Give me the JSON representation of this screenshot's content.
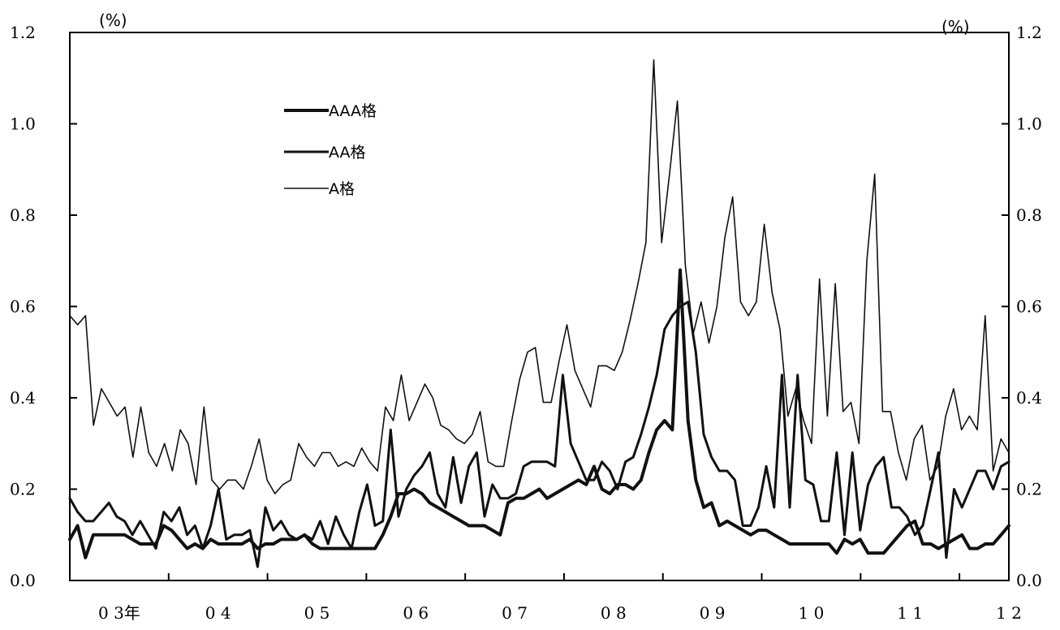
{
  "chart_data": {
    "type": "line",
    "left_unit": "(%)",
    "right_unit": "(%)",
    "ylim": [
      0.0,
      1.2
    ],
    "y_ticks": [
      "0.0",
      "0.2",
      "0.4",
      "0.6",
      "0.8",
      "1.0",
      "1.2"
    ],
    "x_start": 2003.0,
    "x_end": 2012.5,
    "x_ticks": [
      2003,
      2004,
      2005,
      2006,
      2007,
      2008,
      2009,
      2010,
      2011,
      2012
    ],
    "x_labels": [
      "0 3年",
      "0 4",
      "0 5",
      "0 6",
      "0 7",
      "0 8",
      "0 9",
      "1 0",
      "1 1",
      "1 2"
    ],
    "grid": false,
    "legend_position": "top-left",
    "series": [
      {
        "name": "AAA格",
        "stroke_width": 4,
        "values": [
          0.09,
          0.12,
          0.05,
          0.1,
          0.1,
          0.1,
          0.1,
          0.1,
          0.09,
          0.08,
          0.08,
          0.08,
          0.12,
          0.11,
          0.09,
          0.07,
          0.08,
          0.07,
          0.09,
          0.08,
          0.08,
          0.08,
          0.08,
          0.09,
          0.07,
          0.08,
          0.08,
          0.09,
          0.09,
          0.09,
          0.1,
          0.08,
          0.07,
          0.07,
          0.07,
          0.07,
          0.07,
          0.07,
          0.07,
          0.07,
          0.1,
          0.14,
          0.19,
          0.19,
          0.2,
          0.19,
          0.17,
          0.16,
          0.15,
          0.14,
          0.13,
          0.12,
          0.12,
          0.12,
          0.11,
          0.1,
          0.17,
          0.18,
          0.18,
          0.19,
          0.2,
          0.18,
          0.19,
          0.2,
          0.21,
          0.22,
          0.21,
          0.25,
          0.2,
          0.19,
          0.21,
          0.21,
          0.2,
          0.22,
          0.28,
          0.33,
          0.35,
          0.33,
          0.68,
          0.35,
          0.22,
          0.16,
          0.17,
          0.12,
          0.13,
          0.12,
          0.11,
          0.1,
          0.11,
          0.11,
          0.1,
          0.09,
          0.08,
          0.08,
          0.08,
          0.08,
          0.08,
          0.08,
          0.06,
          0.09,
          0.08,
          0.09,
          0.06,
          0.06,
          0.06,
          0.08,
          0.1,
          0.12,
          0.13,
          0.08,
          0.08,
          0.07,
          0.08,
          0.09,
          0.1,
          0.07,
          0.07,
          0.08,
          0.08,
          0.1,
          0.12
        ]
      },
      {
        "name": "AA格",
        "stroke_width": 3,
        "values": [
          0.18,
          0.15,
          0.13,
          0.13,
          0.15,
          0.17,
          0.14,
          0.13,
          0.1,
          0.13,
          0.1,
          0.07,
          0.15,
          0.13,
          0.16,
          0.1,
          0.12,
          0.07,
          0.12,
          0.2,
          0.09,
          0.1,
          0.1,
          0.11,
          0.03,
          0.16,
          0.11,
          0.13,
          0.1,
          0.09,
          0.1,
          0.09,
          0.13,
          0.08,
          0.14,
          0.1,
          0.07,
          0.15,
          0.21,
          0.12,
          0.13,
          0.33,
          0.14,
          0.2,
          0.23,
          0.25,
          0.28,
          0.19,
          0.16,
          0.27,
          0.17,
          0.25,
          0.28,
          0.14,
          0.21,
          0.18,
          0.18,
          0.19,
          0.25,
          0.26,
          0.26,
          0.26,
          0.25,
          0.45,
          0.3,
          0.26,
          0.22,
          0.22,
          0.26,
          0.24,
          0.2,
          0.26,
          0.27,
          0.32,
          0.38,
          0.45,
          0.55,
          0.58,
          0.6,
          0.61,
          0.5,
          0.32,
          0.27,
          0.24,
          0.24,
          0.22,
          0.12,
          0.12,
          0.16,
          0.25,
          0.16,
          0.45,
          0.16,
          0.45,
          0.22,
          0.21,
          0.13,
          0.13,
          0.28,
          0.1,
          0.28,
          0.11,
          0.21,
          0.25,
          0.27,
          0.16,
          0.16,
          0.14,
          0.1,
          0.12,
          0.2,
          0.28,
          0.05,
          0.2,
          0.16,
          0.2,
          0.24,
          0.24,
          0.2,
          0.25,
          0.26
        ]
      },
      {
        "name": "A格",
        "stroke_width": 1.6,
        "values": [
          0.58,
          0.56,
          0.58,
          0.34,
          0.42,
          0.39,
          0.36,
          0.38,
          0.27,
          0.38,
          0.28,
          0.25,
          0.3,
          0.24,
          0.33,
          0.3,
          0.21,
          0.38,
          0.22,
          0.2,
          0.22,
          0.22,
          0.2,
          0.25,
          0.31,
          0.22,
          0.19,
          0.21,
          0.22,
          0.3,
          0.27,
          0.25,
          0.28,
          0.28,
          0.25,
          0.26,
          0.25,
          0.29,
          0.26,
          0.24,
          0.38,
          0.35,
          0.45,
          0.35,
          0.39,
          0.43,
          0.4,
          0.34,
          0.33,
          0.31,
          0.3,
          0.32,
          0.37,
          0.26,
          0.25,
          0.25,
          0.35,
          0.44,
          0.5,
          0.51,
          0.39,
          0.39,
          0.48,
          0.56,
          0.46,
          0.42,
          0.38,
          0.47,
          0.47,
          0.46,
          0.5,
          0.57,
          0.65,
          0.74,
          1.14,
          0.74,
          0.89,
          1.05,
          0.69,
          0.54,
          0.61,
          0.52,
          0.6,
          0.75,
          0.84,
          0.61,
          0.58,
          0.61,
          0.78,
          0.63,
          0.55,
          0.36,
          0.42,
          0.35,
          0.3,
          0.66,
          0.36,
          0.65,
          0.37,
          0.39,
          0.3,
          0.7,
          0.89,
          0.37,
          0.37,
          0.28,
          0.22,
          0.31,
          0.34,
          0.22,
          0.25,
          0.36,
          0.42,
          0.33,
          0.36,
          0.33,
          0.58,
          0.24,
          0.31,
          0.28
        ]
      }
    ]
  }
}
